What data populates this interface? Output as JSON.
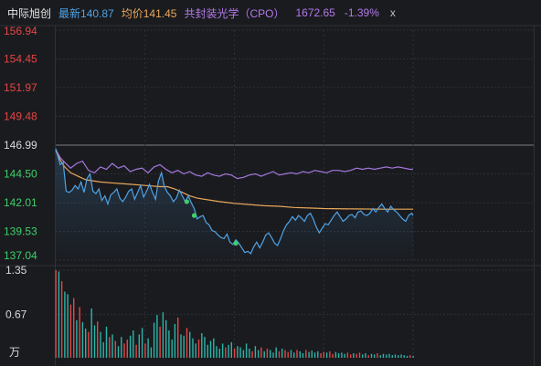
{
  "header": {
    "name": "中际旭创",
    "last": "最新140.87",
    "avg": "均价141.45",
    "index_name": "共封装光学（CPO）",
    "index_value": "1672.65",
    "index_change": "-1.39%",
    "close": "x"
  },
  "colors": {
    "background": "#1a1b1f",
    "grid": "#2e3036",
    "price_line": "#4fa3e6",
    "avg_line": "#e8a85a",
    "index_line": "#a678e0",
    "up": "#e64545",
    "down": "#2bb5a8",
    "marker": "#3ecf6a",
    "axis_up": "#e64545",
    "axis_down": "#3ecf6a",
    "axis_neutral": "#d9d9d9"
  },
  "chart_data": [
    {
      "type": "line",
      "title": "",
      "ylabel": "",
      "ylim": [
        137.04,
        156.94
      ],
      "ytick_labels": [
        "156.94",
        "154.45",
        "151.97",
        "149.48",
        "146.99",
        "144.50",
        "142.01",
        "139.53",
        "137.04"
      ],
      "y_ticks": [
        156.94,
        154.45,
        151.97,
        149.48,
        146.99,
        144.5,
        142.01,
        139.53,
        137.04
      ],
      "prev_close": 146.99,
      "x_count": 241,
      "x_divisions": 4,
      "grid": true,
      "series": [
        {
          "key": "price",
          "points": [
            [
              0,
              146.7
            ],
            [
              3,
              145.3
            ],
            [
              5,
              145.5
            ],
            [
              7,
              143.0
            ],
            [
              9,
              142.9
            ],
            [
              11,
              143.1
            ],
            [
              13,
              143.5
            ],
            [
              15,
              143.2
            ],
            [
              17,
              143.8
            ],
            [
              19,
              142.9
            ],
            [
              21,
              144.1
            ],
            [
              23,
              144.5
            ],
            [
              25,
              143.0
            ],
            [
              27,
              142.8
            ],
            [
              29,
              143.2
            ],
            [
              31,
              142.2
            ],
            [
              33,
              142.6
            ],
            [
              35,
              141.9
            ],
            [
              37,
              142.7
            ],
            [
              39,
              142.9
            ],
            [
              41,
              143.2
            ],
            [
              43,
              142.4
            ],
            [
              45,
              142.1
            ],
            [
              47,
              142.5
            ],
            [
              49,
              143.0
            ],
            [
              51,
              143.2
            ],
            [
              53,
              142.3
            ],
            [
              55,
              142.9
            ],
            [
              57,
              143.5
            ],
            [
              59,
              142.5
            ],
            [
              61,
              143.0
            ],
            [
              63,
              143.6
            ],
            [
              65,
              142.9
            ],
            [
              67,
              142.3
            ],
            [
              69,
              143.9
            ],
            [
              71,
              144.6
            ],
            [
              73,
              143.4
            ],
            [
              75,
              142.9
            ],
            [
              77,
              142.6
            ],
            [
              79,
              142.1
            ],
            [
              81,
              142.4
            ],
            [
              83,
              143.1
            ],
            [
              85,
              142.6
            ],
            [
              87,
              142.1
            ],
            [
              89,
              142.6
            ],
            [
              91,
              142.0
            ],
            [
              93,
              141.5
            ],
            [
              95,
              140.6
            ],
            [
              97,
              140.8
            ],
            [
              99,
              140.9
            ],
            [
              101,
              140.3
            ],
            [
              103,
              140.1
            ],
            [
              105,
              139.6
            ],
            [
              107,
              139.5
            ],
            [
              109,
              139.2
            ],
            [
              111,
              139.0
            ],
            [
              113,
              138.9
            ],
            [
              115,
              139.3
            ],
            [
              117,
              138.6
            ],
            [
              119,
              138.4
            ],
            [
              121,
              138.8
            ],
            [
              123,
              138.5
            ],
            [
              125,
              138.1
            ],
            [
              127,
              137.7
            ],
            [
              129,
              137.8
            ],
            [
              131,
              137.6
            ],
            [
              133,
              138.2
            ],
            [
              135,
              138.6
            ],
            [
              137,
              138.1
            ],
            [
              139,
              138.6
            ],
            [
              141,
              139.2
            ],
            [
              143,
              139.4
            ],
            [
              145,
              139.0
            ],
            [
              147,
              138.5
            ],
            [
              149,
              138.3
            ],
            [
              151,
              138.9
            ],
            [
              153,
              139.6
            ],
            [
              155,
              140.1
            ],
            [
              157,
              140.4
            ],
            [
              159,
              140.8
            ],
            [
              161,
              140.5
            ],
            [
              163,
              140.9
            ],
            [
              165,
              140.7
            ],
            [
              167,
              140.4
            ],
            [
              169,
              140.9
            ],
            [
              171,
              141.1
            ],
            [
              173,
              140.6
            ],
            [
              175,
              139.9
            ],
            [
              177,
              139.4
            ],
            [
              179,
              139.8
            ],
            [
              181,
              140.2
            ],
            [
              183,
              140.1
            ],
            [
              185,
              140.5
            ],
            [
              187,
              140.9
            ],
            [
              189,
              141.2
            ],
            [
              191,
              140.8
            ],
            [
              193,
              140.4
            ],
            [
              195,
              140.6
            ],
            [
              197,
              140.9
            ],
            [
              199,
              141.0
            ],
            [
              201,
              140.7
            ],
            [
              203,
              141.2
            ],
            [
              205,
              141.3
            ],
            [
              207,
              141.0
            ],
            [
              209,
              140.9
            ],
            [
              211,
              141.1
            ],
            [
              213,
              141.5
            ],
            [
              215,
              141.2
            ],
            [
              217,
              141.6
            ],
            [
              219,
              141.9
            ],
            [
              221,
              141.5
            ],
            [
              223,
              141.2
            ],
            [
              225,
              141.7
            ],
            [
              227,
              141.4
            ],
            [
              229,
              141.2
            ],
            [
              231,
              140.9
            ],
            [
              233,
              140.6
            ],
            [
              235,
              140.4
            ],
            [
              237,
              140.9
            ],
            [
              239,
              141.1
            ],
            [
              240,
              140.9
            ]
          ]
        },
        {
          "key": "average",
          "points": [
            [
              0,
              146.5
            ],
            [
              3,
              145.7
            ],
            [
              6,
              145.1
            ],
            [
              10,
              144.6
            ],
            [
              15,
              144.3
            ],
            [
              20,
              144.0
            ],
            [
              30,
              143.8
            ],
            [
              40,
              143.7
            ],
            [
              50,
              143.6
            ],
            [
              60,
              143.5
            ],
            [
              70,
              143.4
            ],
            [
              75,
              143.4
            ],
            [
              80,
              143.2
            ],
            [
              85,
              142.9
            ],
            [
              90,
              142.6
            ],
            [
              95,
              142.4
            ],
            [
              100,
              142.3
            ],
            [
              110,
              142.1
            ],
            [
              120,
              141.95
            ],
            [
              130,
              141.85
            ],
            [
              140,
              141.75
            ],
            [
              150,
              141.7
            ],
            [
              160,
              141.6
            ],
            [
              170,
              141.55
            ],
            [
              180,
              141.5
            ],
            [
              200,
              141.47
            ],
            [
              220,
              141.45
            ],
            [
              240,
              141.45
            ]
          ]
        },
        {
          "key": "index",
          "points": [
            [
              0,
              146.6
            ],
            [
              3,
              145.9
            ],
            [
              6,
              145.5
            ],
            [
              10,
              145.0
            ],
            [
              14,
              145.4
            ],
            [
              18,
              145.6
            ],
            [
              22,
              144.8
            ],
            [
              26,
              144.6
            ],
            [
              30,
              145.1
            ],
            [
              34,
              144.9
            ],
            [
              38,
              145.4
            ],
            [
              42,
              145.0
            ],
            [
              46,
              145.2
            ],
            [
              50,
              144.7
            ],
            [
              54,
              144.9
            ],
            [
              58,
              145.0
            ],
            [
              62,
              144.6
            ],
            [
              66,
              145.1
            ],
            [
              70,
              145.3
            ],
            [
              74,
              144.9
            ],
            [
              78,
              144.6
            ],
            [
              82,
              144.8
            ],
            [
              86,
              144.5
            ],
            [
              90,
              144.7
            ],
            [
              94,
              144.4
            ],
            [
              98,
              144.3
            ],
            [
              102,
              144.6
            ],
            [
              106,
              144.4
            ],
            [
              110,
              144.3
            ],
            [
              114,
              144.5
            ],
            [
              118,
              144.4
            ],
            [
              122,
              144.1
            ],
            [
              126,
              144.2
            ],
            [
              130,
              144.4
            ],
            [
              134,
              144.5
            ],
            [
              138,
              144.3
            ],
            [
              142,
              144.5
            ],
            [
              146,
              144.7
            ],
            [
              150,
              144.4
            ],
            [
              154,
              144.5
            ],
            [
              158,
              144.6
            ],
            [
              162,
              144.5
            ],
            [
              166,
              144.7
            ],
            [
              170,
              144.6
            ],
            [
              174,
              144.8
            ],
            [
              178,
              144.7
            ],
            [
              182,
              144.6
            ],
            [
              186,
              144.8
            ],
            [
              190,
              144.8
            ],
            [
              194,
              144.7
            ],
            [
              198,
              144.8
            ],
            [
              202,
              145.0
            ],
            [
              206,
              144.9
            ],
            [
              210,
              145.0
            ],
            [
              214,
              144.9
            ],
            [
              218,
              145.0
            ],
            [
              222,
              145.1
            ],
            [
              226,
              145.0
            ],
            [
              230,
              145.1
            ],
            [
              234,
              145.0
            ],
            [
              238,
              144.9
            ],
            [
              240,
              144.9
            ]
          ]
        }
      ],
      "markers": [
        [
          88,
          142.1
        ],
        [
          93,
          140.9
        ],
        [
          121,
          138.5
        ]
      ]
    },
    {
      "type": "bar",
      "title": "",
      "ylabel": "万",
      "ylim": [
        0,
        1.35
      ],
      "ytick_labels": [
        "1.35",
        "0.67"
      ],
      "y_ticks": [
        1.35,
        0.67
      ],
      "x_step": 2,
      "values": [
        1.35,
        1.33,
        1.18,
        1.02,
        0.98,
        0.82,
        0.92,
        0.58,
        0.78,
        0.55,
        0.45,
        0.4,
        0.76,
        0.5,
        0.56,
        0.4,
        0.24,
        0.48,
        0.32,
        0.36,
        0.26,
        0.18,
        0.32,
        0.22,
        0.28,
        0.34,
        0.42,
        0.2,
        0.36,
        0.46,
        0.22,
        0.3,
        0.16,
        0.54,
        0.66,
        0.48,
        0.7,
        0.58,
        0.42,
        0.28,
        0.52,
        0.62,
        0.36,
        0.34,
        0.46,
        0.4,
        0.3,
        0.22,
        0.28,
        0.38,
        0.32,
        0.2,
        0.26,
        0.3,
        0.18,
        0.14,
        0.22,
        0.16,
        0.2,
        0.24,
        0.14,
        0.18,
        0.16,
        0.12,
        0.22,
        0.14,
        0.1,
        0.18,
        0.12,
        0.16,
        0.1,
        0.14,
        0.12,
        0.08,
        0.16,
        0.1,
        0.14,
        0.12,
        0.09,
        0.12,
        0.08,
        0.12,
        0.1,
        0.07,
        0.12,
        0.09,
        0.11,
        0.08,
        0.1,
        0.07,
        0.09,
        0.08,
        0.1,
        0.06,
        0.09,
        0.07,
        0.08,
        0.06,
        0.08,
        0.05,
        0.07,
        0.06,
        0.08,
        0.05,
        0.07,
        0.04,
        0.06,
        0.05,
        0.07,
        0.04,
        0.06,
        0.05,
        0.06,
        0.04,
        0.05,
        0.04,
        0.05,
        0.04,
        0.03,
        0.04,
        0.03
      ]
    }
  ]
}
